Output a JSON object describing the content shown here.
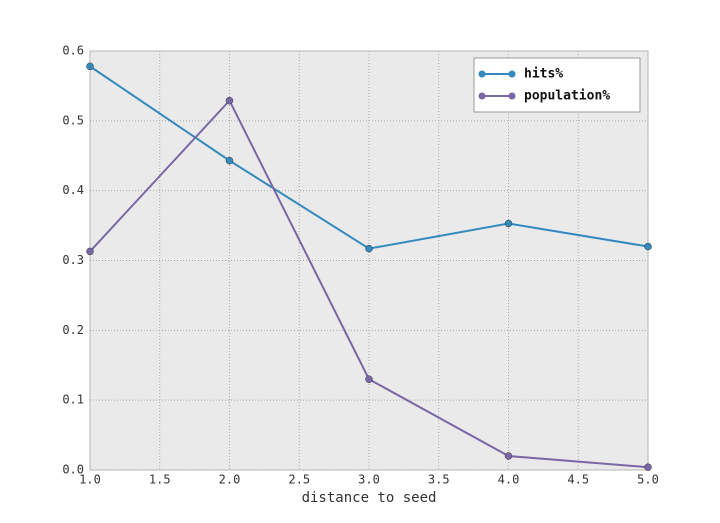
{
  "chart_data": {
    "type": "line",
    "xlabel": "distance to seed",
    "x": [
      1,
      2,
      3,
      4,
      5
    ],
    "series": [
      {
        "name": "hits%",
        "color": "#348ABD",
        "values": [
          0.578,
          0.443,
          0.317,
          0.353,
          0.32
        ]
      },
      {
        "name": "population%",
        "color": "#7A68A6",
        "values": [
          0.313,
          0.529,
          0.13,
          0.02,
          0.004
        ]
      }
    ],
    "xlim": [
      1,
      5
    ],
    "xticks": [
      {
        "value": 1,
        "label": "1.0"
      },
      {
        "value": 1.5,
        "label": "1.5"
      },
      {
        "value": 2,
        "label": "2.0"
      },
      {
        "value": 2.5,
        "label": "2.5"
      },
      {
        "value": 3,
        "label": "3.0"
      },
      {
        "value": 3.5,
        "label": "3.5"
      },
      {
        "value": 4,
        "label": "4.0"
      },
      {
        "value": 4.5,
        "label": "4.5"
      },
      {
        "value": 5,
        "label": "5.0"
      }
    ],
    "ylim": [
      0,
      0.6
    ],
    "yticks": [
      {
        "value": 0,
        "label": "0.0"
      },
      0.1,
      0.2,
      0.3,
      0.4,
      0.5,
      0.6
    ],
    "grid": true,
    "legend": "upper right"
  }
}
